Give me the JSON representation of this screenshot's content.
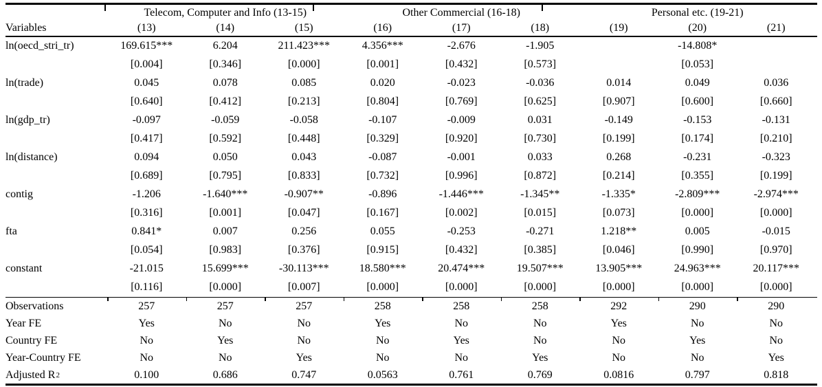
{
  "table": {
    "variables_header": "Variables",
    "groups": [
      {
        "label": "Telecom, Computer and Info (13-15)"
      },
      {
        "label": "Other Commercial (16-18)"
      },
      {
        "label": "Personal etc. (19-21)"
      }
    ],
    "columns": [
      "(13)",
      "(14)",
      "(15)",
      "(16)",
      "(17)",
      "(18)",
      "(19)",
      "(20)",
      "(21)"
    ],
    "coef_rows": [
      {
        "variable": "ln(oecd_stri_tr)",
        "coefs": [
          "169.615***",
          "6.204",
          "211.423***",
          "4.356***",
          "-2.676",
          "-1.905",
          "",
          "-14.808*",
          ""
        ],
        "pvals": [
          "[0.004]",
          "[0.346]",
          "[0.000]",
          "[0.001]",
          "[0.432]",
          "[0.573]",
          "",
          "[0.053]",
          ""
        ]
      },
      {
        "variable": "ln(trade)",
        "coefs": [
          "0.045",
          "0.078",
          "0.085",
          "0.020",
          "-0.023",
          "-0.036",
          "0.014",
          "0.049",
          "0.036"
        ],
        "pvals": [
          "[0.640]",
          "[0.412]",
          "[0.213]",
          "[0.804]",
          "[0.769]",
          "[0.625]",
          "[0.907]",
          "[0.600]",
          "[0.660]"
        ]
      },
      {
        "variable": "ln(gdp_tr)",
        "coefs": [
          "-0.097",
          "-0.059",
          "-0.058",
          "-0.107",
          "-0.009",
          "0.031",
          "-0.149",
          "-0.153",
          "-0.131"
        ],
        "pvals": [
          "[0.417]",
          "[0.592]",
          "[0.448]",
          "[0.329]",
          "[0.920]",
          "[0.730]",
          "[0.199]",
          "[0.174]",
          "[0.210]"
        ]
      },
      {
        "variable": "ln(distance)",
        "coefs": [
          "0.094",
          "0.050",
          "0.043",
          "-0.087",
          "-0.001",
          "0.033",
          "0.268",
          "-0.231",
          "-0.323"
        ],
        "pvals": [
          "[0.689]",
          "[0.795]",
          "[0.833]",
          "[0.732]",
          "[0.996]",
          "[0.872]",
          "[0.214]",
          "[0.355]",
          "[0.199]"
        ]
      },
      {
        "variable": "contig",
        "coefs": [
          "-1.206",
          "-1.640***",
          "-0.907**",
          "-0.896",
          "-1.446***",
          "-1.345**",
          "-1.335*",
          "-2.809***",
          "-2.974***"
        ],
        "pvals": [
          "[0.316]",
          "[0.001]",
          "[0.047]",
          "[0.167]",
          "[0.002]",
          "[0.015]",
          "[0.073]",
          "[0.000]",
          "[0.000]"
        ]
      },
      {
        "variable": "fta",
        "coefs": [
          "0.841*",
          "0.007",
          "0.256",
          "0.055",
          "-0.253",
          "-0.271",
          "1.218**",
          "0.005",
          "-0.015"
        ],
        "pvals": [
          "[0.054]",
          "[0.983]",
          "[0.376]",
          "[0.915]",
          "[0.432]",
          "[0.385]",
          "[0.046]",
          "[0.990]",
          "[0.970]"
        ]
      },
      {
        "variable": "constant",
        "coefs": [
          "-21.015",
          "15.699***",
          "-30.113***",
          "18.580***",
          "20.474***",
          "19.507***",
          "13.905***",
          "24.963***",
          "20.117***"
        ],
        "pvals": [
          "[0.116]",
          "[0.000]",
          "[0.007]",
          "[0.000]",
          "[0.000]",
          "[0.000]",
          "[0.000]",
          "[0.000]",
          "[0.000]"
        ]
      }
    ],
    "summary_rows": [
      {
        "label": "Observations",
        "label_sup": "",
        "values": [
          "257",
          "257",
          "257",
          "258",
          "258",
          "258",
          "292",
          "290",
          "290"
        ]
      },
      {
        "label": "Year FE",
        "label_sup": "",
        "values": [
          "Yes",
          "No",
          "No",
          "Yes",
          "No",
          "No",
          "Yes",
          "No",
          "No"
        ]
      },
      {
        "label": "Country FE",
        "label_sup": "",
        "values": [
          "No",
          "Yes",
          "No",
          "No",
          "Yes",
          "No",
          "No",
          "Yes",
          "No"
        ]
      },
      {
        "label": "Year-Country FE",
        "label_sup": "",
        "values": [
          "No",
          "No",
          "Yes",
          "No",
          "No",
          "Yes",
          "No",
          "No",
          "Yes"
        ]
      },
      {
        "label": "Adjusted R",
        "label_sup": "2",
        "values": [
          "0.100",
          "0.686",
          "0.747",
          "0.0563",
          "0.761",
          "0.769",
          "0.0816",
          "0.797",
          "0.818"
        ]
      }
    ]
  }
}
